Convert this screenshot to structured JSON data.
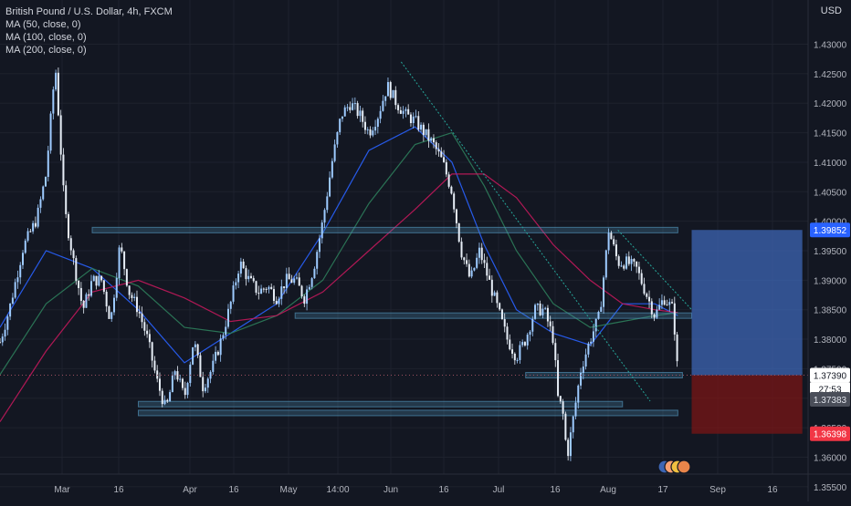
{
  "header": {
    "title": "British Pound / U.S. Dollar, 4h, FXCM",
    "indicators": [
      "MA (50, close, 0)",
      "MA (100, close, 0)",
      "MA (200, close, 0)"
    ],
    "currency": "USD"
  },
  "colors": {
    "background": "#131722",
    "grid": "#1e222d",
    "candle_up": "#9ecbff",
    "candle_down": "#e7eef7",
    "ma50": "#2962ff",
    "ma100": "#2e7d5b",
    "ma200": "#c2185b",
    "zone": "#4f8fb3",
    "target": "#3d66b4",
    "stop": "#7a1616",
    "trendline": "#26a69a",
    "current_price": "#e0e3eb",
    "stop_label": "#f23645",
    "target_label": "#2962ff"
  },
  "chart_data": {
    "type": "candlestick",
    "symbol": "GBPUSD",
    "timeframe": "4h",
    "ylim": [
      1.3525,
      1.4375
    ],
    "y_ticks": [
      "1.43000",
      "1.42500",
      "1.42000",
      "1.41500",
      "1.41000",
      "1.40500",
      "1.40000",
      "1.39500",
      "1.39000",
      "1.38500",
      "1.38000",
      "1.37500",
      "1.37000",
      "1.36500",
      "1.36000",
      "1.35500"
    ],
    "x_ticks": [
      "Mar",
      "16",
      "Apr",
      "16",
      "May",
      "14:00",
      "Jun",
      "16",
      "Jul",
      "16",
      "Aug",
      "17",
      "Sep",
      "16"
    ],
    "price_path": [
      [
        0,
        1.3795
      ],
      [
        2,
        1.385
      ],
      [
        5,
        1.3955
      ],
      [
        8,
        1.4005
      ],
      [
        10,
        1.408
      ],
      [
        12,
        1.4265
      ],
      [
        14,
        1.402
      ],
      [
        16,
        1.393
      ],
      [
        18,
        1.385
      ],
      [
        20,
        1.39
      ],
      [
        22,
        1.39
      ],
      [
        24,
        1.383
      ],
      [
        26,
        1.396
      ],
      [
        28,
        1.388
      ],
      [
        30,
        1.385
      ],
      [
        32,
        1.38
      ],
      [
        34,
        1.373
      ],
      [
        36,
        1.368
      ],
      [
        38,
        1.375
      ],
      [
        40,
        1.37
      ],
      [
        42,
        1.38
      ],
      [
        44,
        1.372
      ],
      [
        46,
        1.375
      ],
      [
        48,
        1.38
      ],
      [
        50,
        1.386
      ],
      [
        52,
        1.393
      ],
      [
        54,
        1.39
      ],
      [
        56,
        1.388
      ],
      [
        58,
        1.389
      ],
      [
        60,
        1.387
      ],
      [
        62,
        1.39
      ],
      [
        64,
        1.39
      ],
      [
        66,
        1.387
      ],
      [
        68,
        1.392
      ],
      [
        70,
        1.4
      ],
      [
        72,
        1.41
      ],
      [
        74,
        1.418
      ],
      [
        76,
        1.42
      ],
      [
        78,
        1.418
      ],
      [
        80,
        1.415
      ],
      [
        82,
        1.418
      ],
      [
        84,
        1.423
      ],
      [
        86,
        1.42
      ],
      [
        88,
        1.418
      ],
      [
        90,
        1.417
      ],
      [
        92,
        1.415
      ],
      [
        94,
        1.413
      ],
      [
        96,
        1.41
      ],
      [
        98,
        1.405
      ],
      [
        100,
        1.395
      ],
      [
        102,
        1.39
      ],
      [
        104,
        1.395
      ],
      [
        106,
        1.39
      ],
      [
        108,
        1.385
      ],
      [
        110,
        1.38
      ],
      [
        112,
        1.377
      ],
      [
        114,
        1.38
      ],
      [
        116,
        1.385
      ],
      [
        118,
        1.385
      ],
      [
        120,
        1.38
      ],
      [
        121,
        1.37
      ],
      [
        122,
        1.368
      ],
      [
        123,
        1.36
      ],
      [
        124,
        1.365
      ],
      [
        126,
        1.375
      ],
      [
        128,
        1.38
      ],
      [
        130,
        1.384
      ],
      [
        132,
        1.3985
      ],
      [
        134,
        1.393
      ],
      [
        136,
        1.393
      ],
      [
        138,
        1.392
      ],
      [
        140,
        1.388
      ],
      [
        142,
        1.384
      ],
      [
        144,
        1.387
      ],
      [
        146,
        1.385
      ],
      [
        147,
        1.3739
      ]
    ],
    "moving_averages": [
      {
        "name": "MA (50, close, 0)",
        "path": [
          [
            0,
            1.382
          ],
          [
            10,
            1.395
          ],
          [
            20,
            1.392
          ],
          [
            30,
            1.385
          ],
          [
            40,
            1.376
          ],
          [
            50,
            1.381
          ],
          [
            60,
            1.386
          ],
          [
            70,
            1.398
          ],
          [
            80,
            1.412
          ],
          [
            90,
            1.416
          ],
          [
            98,
            1.41
          ],
          [
            105,
            1.396
          ],
          [
            112,
            1.385
          ],
          [
            120,
            1.381
          ],
          [
            128,
            1.379
          ],
          [
            135,
            1.386
          ],
          [
            142,
            1.386
          ],
          [
            147,
            1.384
          ]
        ]
      },
      {
        "name": "MA (100, close, 0)",
        "path": [
          [
            0,
            1.374
          ],
          [
            10,
            1.386
          ],
          [
            20,
            1.392
          ],
          [
            30,
            1.389
          ],
          [
            40,
            1.382
          ],
          [
            50,
            1.381
          ],
          [
            60,
            1.384
          ],
          [
            70,
            1.39
          ],
          [
            80,
            1.403
          ],
          [
            90,
            1.413
          ],
          [
            98,
            1.415
          ],
          [
            105,
            1.406
          ],
          [
            112,
            1.395
          ],
          [
            120,
            1.386
          ],
          [
            128,
            1.382
          ],
          [
            135,
            1.383
          ],
          [
            142,
            1.384
          ],
          [
            147,
            1.3845
          ]
        ]
      },
      {
        "name": "MA (200, close, 0)",
        "path": [
          [
            0,
            1.366
          ],
          [
            10,
            1.378
          ],
          [
            20,
            1.388
          ],
          [
            30,
            1.39
          ],
          [
            40,
            1.387
          ],
          [
            50,
            1.383
          ],
          [
            60,
            1.384
          ],
          [
            70,
            1.388
          ],
          [
            80,
            1.395
          ],
          [
            90,
            1.402
          ],
          [
            98,
            1.408
          ],
          [
            105,
            1.408
          ],
          [
            112,
            1.404
          ],
          [
            120,
            1.396
          ],
          [
            128,
            1.39
          ],
          [
            135,
            1.386
          ],
          [
            142,
            1.385
          ],
          [
            147,
            1.3845
          ]
        ]
      }
    ],
    "levels": [
      {
        "from": 20,
        "to": 147,
        "price": 1.3985
      },
      {
        "from": 64,
        "to": 150,
        "price": 1.384
      },
      {
        "from": 114,
        "to": 148,
        "price": 1.3739
      },
      {
        "from": 30,
        "to": 135,
        "price": 1.369
      },
      {
        "from": 30,
        "to": 147,
        "price": 1.3675
      }
    ],
    "trendline": {
      "from": [
        87,
        1.427
      ],
      "to": [
        141,
        1.3695
      ]
    },
    "trendline2": {
      "from": [
        134,
        1.3985
      ],
      "to": [
        150,
        1.385
      ]
    },
    "position": {
      "entry": 1.3739,
      "target": 1.39852,
      "stop": 1.36398,
      "x_from": 150,
      "x_to": 174
    },
    "price_labels": {
      "target": "1.39852",
      "current": "1.37390",
      "countdown": "27:53",
      "level": "1.37383",
      "stop": "1.36398"
    }
  }
}
